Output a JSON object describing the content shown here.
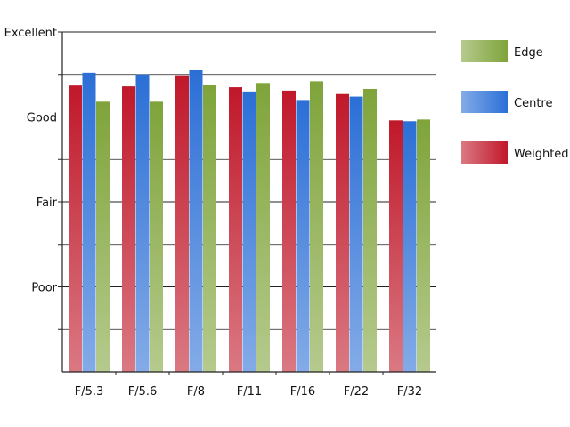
{
  "chart_data": {
    "type": "bar",
    "title": "",
    "xlabel": "",
    "ylabel": "",
    "categories": [
      "F/5.3",
      "F/5.6",
      "F/8",
      "F/11",
      "F/16",
      "F/22",
      "F/32"
    ],
    "y_tick_labels": [
      "Poor",
      "Fair",
      "Good",
      "Excellent"
    ],
    "y_tick_values": [
      1,
      2,
      3,
      4
    ],
    "ylim": [
      0,
      4
    ],
    "grid": true,
    "legend_position": "right",
    "series": [
      {
        "name": "Weighted",
        "color": "#c0182a",
        "values": [
          3.37,
          3.36,
          3.49,
          3.35,
          3.31,
          3.27,
          2.96
        ]
      },
      {
        "name": "Centre",
        "color": "#2b6fd6",
        "values": [
          3.52,
          3.5,
          3.55,
          3.3,
          3.2,
          3.24,
          2.95
        ]
      },
      {
        "name": "Edge",
        "color": "#7fa43a",
        "values": [
          3.18,
          3.18,
          3.38,
          3.4,
          3.42,
          3.33,
          2.97
        ]
      }
    ],
    "legend_order": [
      "Edge",
      "Centre",
      "Weighted"
    ]
  }
}
